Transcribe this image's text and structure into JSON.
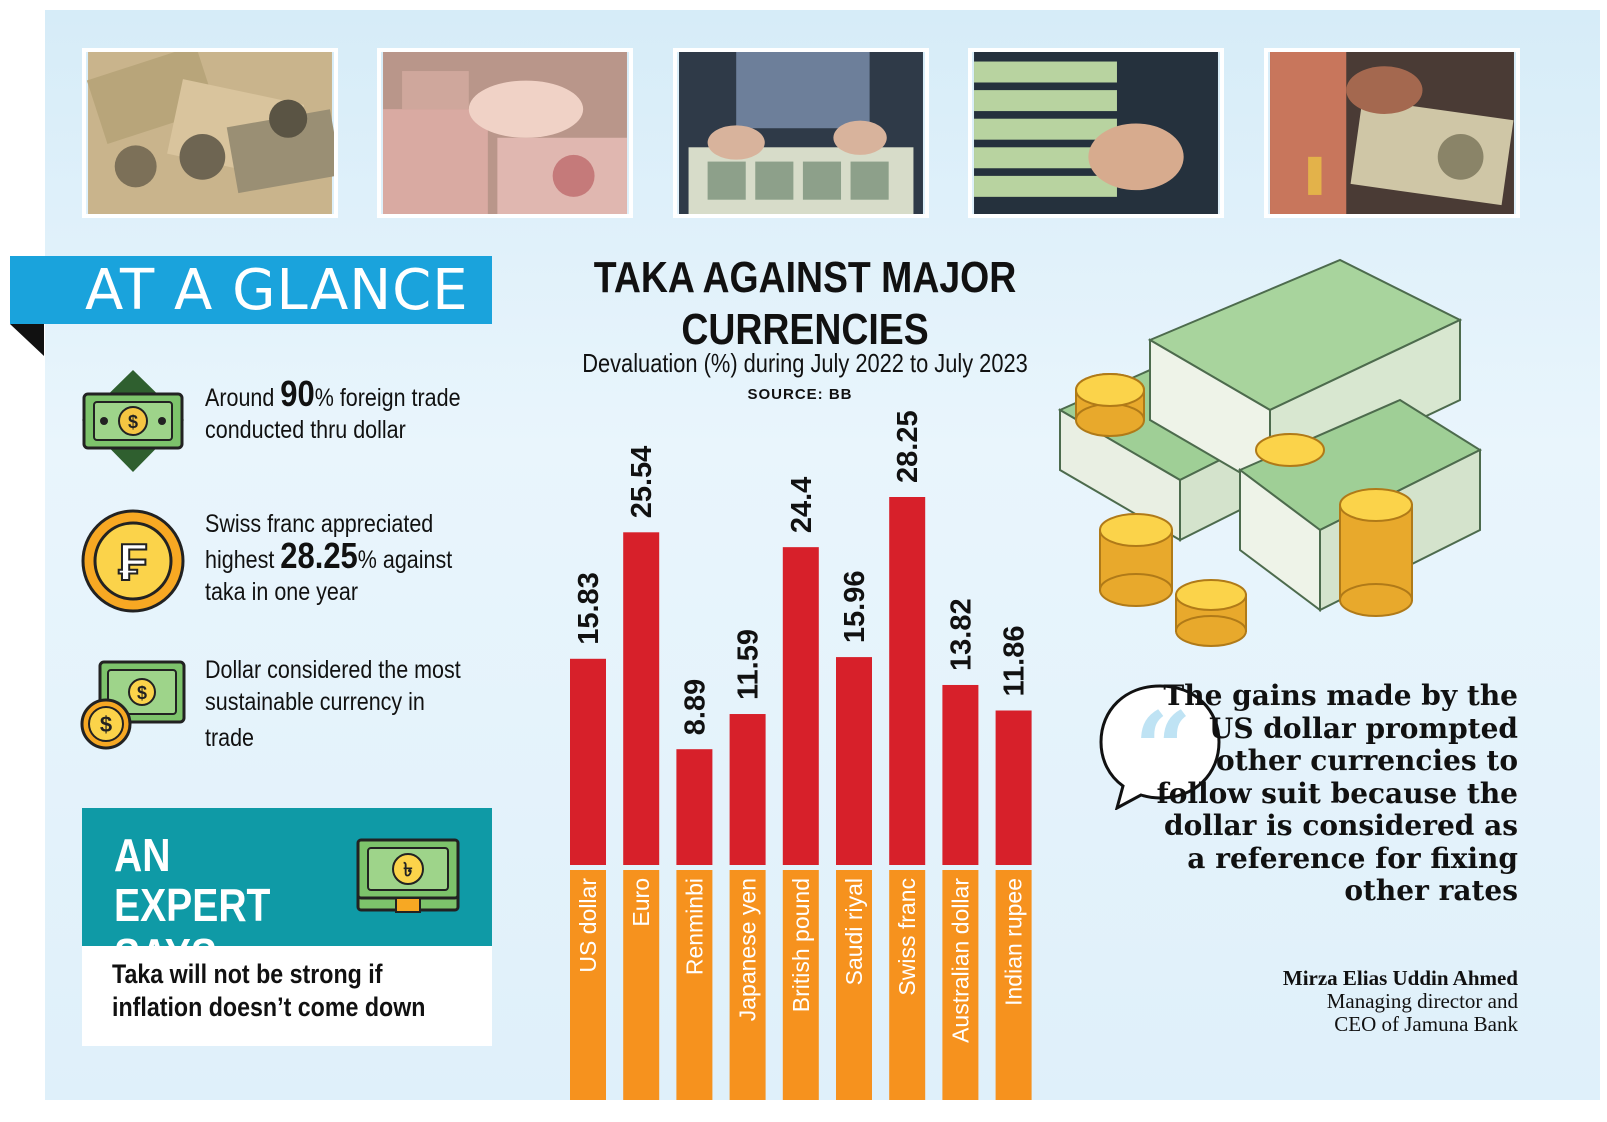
{
  "glance": {
    "title": "AT A GLANCE",
    "facts": [
      {
        "pre": "Around ",
        "bold": "90",
        "post": "% foreign trade conducted thru dollar",
        "icon": "dollar-bill-icon"
      },
      {
        "pre": "Swiss franc appreciated highest ",
        "bold": "28.25",
        "post": "% against taka in one year",
        "icon": "franc-coin-icon"
      },
      {
        "pre": "Dollar considered the most sustainable currency in trade",
        "bold": "",
        "post": "",
        "icon": "dollar-coins-icon"
      }
    ]
  },
  "expert": {
    "title": "AN EXPERT SAYS…",
    "quote": "Taka will not be strong if inflation doesn’t come down",
    "icon": "taka-bill-icon"
  },
  "quote": {
    "text": "The gains made by the US dollar prompted other currencies to follow suit because the dollar is considered as a reference for fixing other rates",
    "name": "Mirza Elias Uddin Ahmed",
    "role_line1": "Managing director and",
    "role_line2": "CEO of Jamuna Bank"
  },
  "chart_data": {
    "type": "bar",
    "title": "TAKA AGAINST MAJOR CURRENCIES",
    "subtitle": "Devaluation (%) during July 2022 to July 2023",
    "source": "SOURCE: BB",
    "categories": [
      "US dollar",
      "Euro",
      "Renminbi",
      "Japanese yen",
      "British pound",
      "Saudi riyal",
      "Swiss franc",
      "Australian dollar",
      "Indian rupee"
    ],
    "values": [
      15.83,
      25.54,
      8.89,
      11.59,
      24.4,
      15.96,
      28.25,
      13.82,
      11.86
    ],
    "value_labels": [
      "15.83",
      "25.54",
      "8.89",
      "11.59",
      "24.4",
      "15.96",
      "28.25",
      "13.82",
      "11.86"
    ],
    "ylim": [
      0,
      28.25
    ],
    "grid": false,
    "legend": "none",
    "colors": {
      "bar": "#d7202a",
      "label_band": "#f6921e"
    }
  },
  "colors": {
    "accent": "#1aa3dc",
    "teal": "#0f9aa6",
    "bar_red": "#d7202a",
    "bar_orange": "#f6921e"
  }
}
